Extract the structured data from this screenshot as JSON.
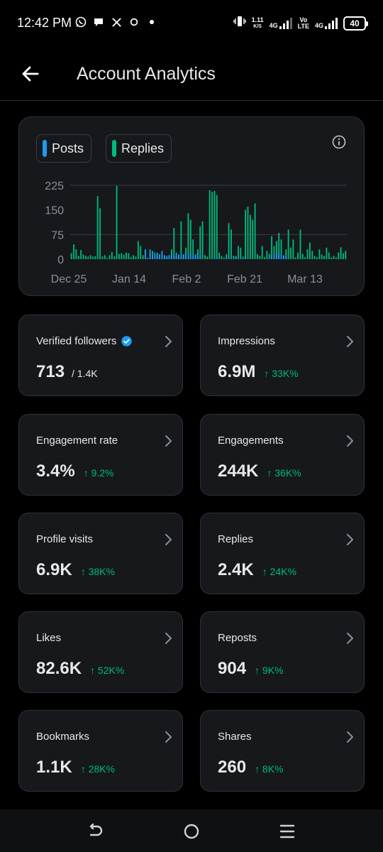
{
  "status_bar": {
    "time": "12:42 PM",
    "net_speed_value": "1.11",
    "net_speed_unit": "K/S",
    "network_1": "4G",
    "network_2_top": "Vo",
    "network_2_bottom": "LTE",
    "network_3": "4G",
    "battery": "40"
  },
  "header": {
    "title": "Account Analytics"
  },
  "chart": {
    "legend": [
      {
        "label": "Posts",
        "color": "#1d9bf0"
      },
      {
        "label": "Replies",
        "color": "#00ba7c"
      }
    ]
  },
  "chart_data": {
    "type": "bar",
    "x_tick_labels": [
      "Dec 25",
      "Jan 14",
      "Feb 2",
      "Feb 21",
      "Mar 13"
    ],
    "y_tick_labels": [
      "225",
      "150",
      "75",
      "0"
    ],
    "ylim": [
      0,
      225
    ],
    "grid": true,
    "legend_position": "top-left",
    "series": [
      {
        "name": "Replies",
        "color": "#00ba7c",
        "values": [
          18,
          45,
          30,
          10,
          28,
          14,
          10,
          8,
          12,
          8,
          9,
          192,
          155,
          8,
          12,
          3,
          12,
          22,
          8,
          223,
          16,
          18,
          14,
          20,
          18,
          6,
          12,
          8,
          55,
          40,
          12,
          25,
          4,
          30,
          8,
          20,
          14,
          4,
          18,
          6,
          4,
          12,
          30,
          95,
          10,
          14,
          115,
          14,
          35,
          140,
          120,
          60,
          10,
          30,
          100,
          115,
          12,
          8,
          210,
          205,
          208,
          195,
          20,
          10,
          5,
          15,
          110,
          90,
          10,
          4,
          40,
          35,
          8,
          150,
          160,
          135,
          120,
          170,
          15,
          10,
          40,
          6,
          25,
          16,
          70,
          40,
          55,
          80,
          60,
          12,
          30,
          90,
          35,
          60,
          5,
          20,
          90,
          16,
          6,
          30,
          50,
          25,
          10,
          6,
          30,
          14,
          10,
          35,
          20,
          5,
          10,
          5,
          20,
          36,
          18,
          25
        ]
      },
      {
        "name": "Posts",
        "color": "#1d9bf0",
        "values": [
          0,
          0,
          0,
          0,
          0,
          0,
          0,
          0,
          0,
          0,
          0,
          0,
          0,
          0,
          0,
          0,
          0,
          0,
          0,
          0,
          0,
          0,
          0,
          0,
          0,
          0,
          0,
          0,
          0,
          0,
          0,
          30,
          0,
          20,
          25,
          10,
          20,
          15,
          25,
          12,
          10,
          12,
          18,
          10,
          20,
          14,
          10,
          15,
          20,
          12,
          18,
          10,
          15,
          20,
          12,
          0,
          0,
          0,
          0,
          0,
          10,
          0,
          0,
          0,
          0,
          0,
          12,
          0,
          0,
          10,
          0,
          0,
          0,
          8,
          0,
          0,
          0,
          0,
          0,
          0,
          0,
          0,
          0,
          0,
          12,
          15,
          18,
          20,
          12,
          10,
          8,
          0,
          0,
          0,
          0,
          0,
          0,
          0,
          0,
          0,
          0,
          0,
          0,
          0,
          0,
          0,
          0,
          0,
          0,
          0,
          0,
          0,
          0,
          0,
          0,
          0
        ]
      }
    ]
  },
  "metrics": [
    {
      "label": "Verified followers",
      "value": "713",
      "sub": "/ 1.4K",
      "verified": true
    },
    {
      "label": "Impressions",
      "value": "6.9M",
      "change": "↑ 33K%"
    },
    {
      "label": "Engagement rate",
      "value": "3.4%",
      "change": "↑ 9.2%"
    },
    {
      "label": "Engagements",
      "value": "244K",
      "change": "↑ 36K%"
    },
    {
      "label": "Profile visits",
      "value": "6.9K",
      "change": "↑ 38K%"
    },
    {
      "label": "Replies",
      "value": "2.4K",
      "change": "↑ 24K%"
    },
    {
      "label": "Likes",
      "value": "82.6K",
      "change": "↑ 52K%"
    },
    {
      "label": "Reposts",
      "value": "904",
      "change": "↑ 9K%"
    },
    {
      "label": "Bookmarks",
      "value": "1.1K",
      "change": "↑ 28K%"
    },
    {
      "label": "Shares",
      "value": "260",
      "change": "↑ 8K%"
    }
  ]
}
